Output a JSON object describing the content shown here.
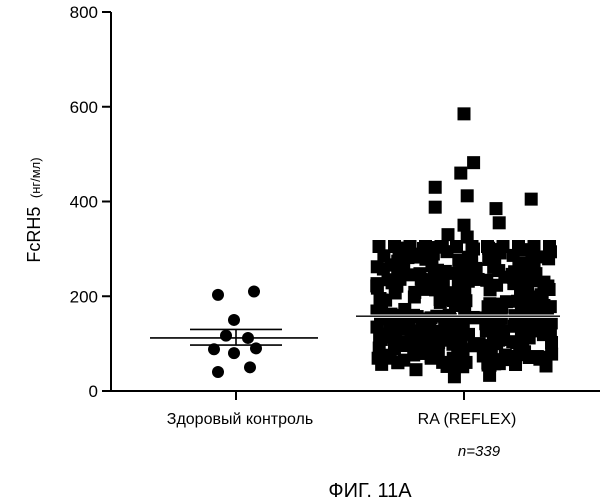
{
  "chart_data": {
    "type": "scatter",
    "subtype": "dot plot with mean and SEM bars",
    "ylabel_main": "FcRH5",
    "ylabel_unit": "(нг/мл)",
    "ylim": [
      0,
      800
    ],
    "yticks": [
      0,
      200,
      400,
      600,
      800
    ],
    "grid": false,
    "categories": [
      "Здоровый контроль",
      "RA (REFLEX)"
    ],
    "annotations": [
      "n=339"
    ],
    "caption": "ФИГ. 11А",
    "series": [
      {
        "category": "Здоровый контроль",
        "marker": "circle",
        "color": "#000000",
        "mean": 112,
        "sem_upper": 130,
        "sem_lower": 97,
        "points": [
          {
            "dx": -0.18,
            "y": 203
          },
          {
            "dx": 0.18,
            "y": 210
          },
          {
            "dx": -0.02,
            "y": 150
          },
          {
            "dx": -0.1,
            "y": 117
          },
          {
            "dx": 0.12,
            "y": 112
          },
          {
            "dx": -0.22,
            "y": 88
          },
          {
            "dx": 0.2,
            "y": 90
          },
          {
            "dx": -0.02,
            "y": 80
          },
          {
            "dx": -0.18,
            "y": 40
          },
          {
            "dx": 0.14,
            "y": 50
          }
        ]
      },
      {
        "category": "RA (REFLEX)",
        "marker": "square",
        "color": "#000000",
        "mean": 158,
        "sem_upper": 162,
        "sem_lower": 154,
        "n": 339,
        "outliers": [
          {
            "dx": 0.0,
            "y": 585
          },
          {
            "dx": 0.06,
            "y": 482
          },
          {
            "dx": -0.02,
            "y": 460
          },
          {
            "dx": -0.18,
            "y": 430
          },
          {
            "dx": 0.02,
            "y": 412
          },
          {
            "dx": 0.42,
            "y": 405
          },
          {
            "dx": -0.18,
            "y": 388
          },
          {
            "dx": 0.2,
            "y": 385
          },
          {
            "dx": 0.0,
            "y": 350
          },
          {
            "dx": 0.22,
            "y": 355
          },
          {
            "dx": -0.1,
            "y": 330
          },
          {
            "dx": 0.02,
            "y": 325
          },
          {
            "dx": -0.06,
            "y": 30
          },
          {
            "dx": 0.16,
            "y": 33
          },
          {
            "dx": -0.3,
            "y": 45
          }
        ],
        "cloud": {
          "ymin": 50,
          "ymax": 305,
          "half_width": 0.55
        }
      }
    ]
  }
}
